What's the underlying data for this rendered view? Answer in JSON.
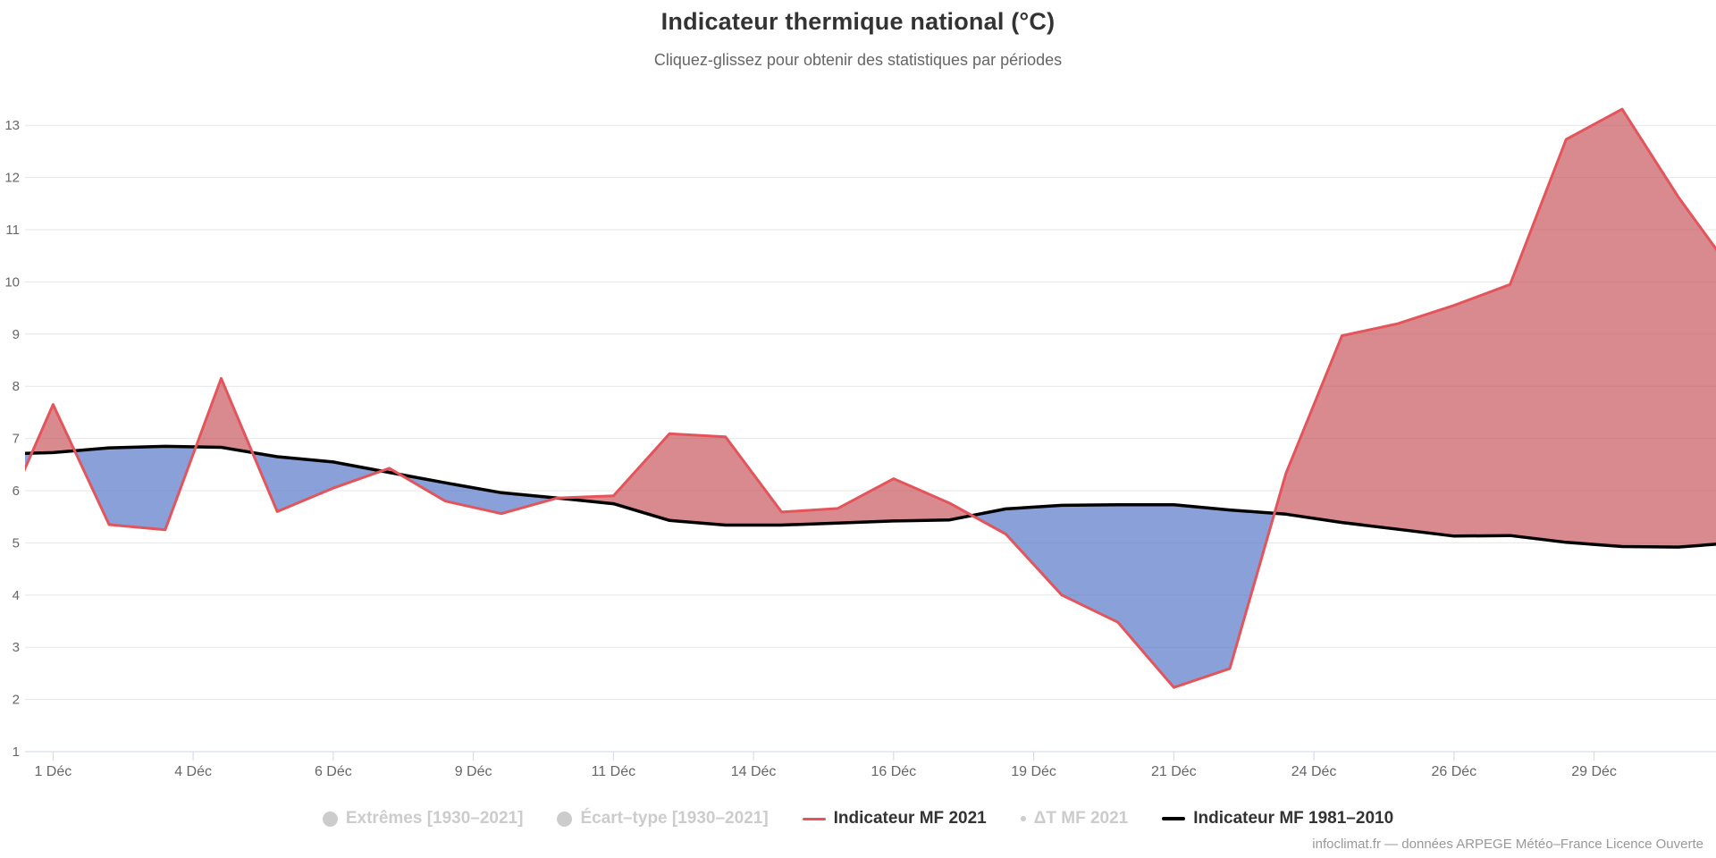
{
  "title": "Indicateur thermique national (°C)",
  "subtitle": "Cliquez-glissez pour obtenir des statistiques par périodes",
  "credit": "infoclimat.fr — données ARPEGE Météo–France Licence Ouverte",
  "colors": {
    "series_2021_line": "#e4545b",
    "series_ref_line": "#000000",
    "fill_above_reference": "rgba(196,77,85,0.66)",
    "fill_below_reference": "rgba(77,111,196,0.66)",
    "grid_line": "#e6e6e6",
    "axis_line": "#ccd6eb",
    "axis_label": "#666666",
    "title_text": "#333333",
    "subtitle_text": "#666666",
    "legend_active_text": "#333333",
    "legend_disabled": "#cccccc",
    "credit_text": "#999999"
  },
  "legend": {
    "items": [
      {
        "label": "Extrêmes [1930–2021]",
        "marker": "circle",
        "enabled": false
      },
      {
        "label": "Écart–type [1930–2021]",
        "marker": "circle",
        "enabled": false
      },
      {
        "label": "Indicateur MF 2021",
        "marker": "line-red",
        "enabled": true
      },
      {
        "label": "ΔT MF 2021",
        "marker": "dot",
        "enabled": false
      },
      {
        "label": "Indicateur MF 1981–2010",
        "marker": "line-black",
        "enabled": true
      }
    ]
  },
  "chart_data": {
    "type": "line",
    "title": "Indicateur thermique national (°C)",
    "xlabel": "",
    "ylabel": "",
    "ylim": [
      1,
      13
    ],
    "y_ticks": [
      1,
      2,
      3,
      4,
      5,
      6,
      7,
      8,
      9,
      10,
      11,
      12,
      13
    ],
    "x_range_days": [
      0,
      30.18
    ],
    "x_ticks": [
      {
        "t": 0.5,
        "label": "1 Déc"
      },
      {
        "t": 3,
        "label": "4 Déc"
      },
      {
        "t": 5.5,
        "label": "6 Déc"
      },
      {
        "t": 8,
        "label": "9 Déc"
      },
      {
        "t": 10.5,
        "label": "11 Déc"
      },
      {
        "t": 13,
        "label": "14 Déc"
      },
      {
        "t": 15.5,
        "label": "16 Déc"
      },
      {
        "t": 18,
        "label": "19 Déc"
      },
      {
        "t": 20.5,
        "label": "21 Déc"
      },
      {
        "t": 23,
        "label": "24 Déc"
      },
      {
        "t": 25.5,
        "label": "26 Déc"
      },
      {
        "t": 28,
        "label": "29 Déc"
      }
    ],
    "days": [
      1,
      2,
      3,
      4,
      5,
      6,
      7,
      8,
      9,
      10,
      11,
      12,
      13,
      14,
      15,
      16,
      17,
      18,
      19,
      20,
      21,
      22,
      23,
      24,
      25,
      26,
      27,
      28,
      29,
      30,
      31
    ],
    "series": [
      {
        "name": "Indicateur MF 2021",
        "color": "#e4545b",
        "lead_in_nov30": 5.2,
        "values": [
          7.65,
          5.35,
          5.25,
          8.15,
          5.6,
          6.05,
          6.43,
          5.8,
          5.56,
          5.86,
          5.9,
          7.09,
          7.03,
          5.59,
          5.66,
          6.23,
          5.76,
          5.17,
          4.0,
          3.48,
          2.23,
          2.59,
          6.33,
          8.97,
          9.2,
          9.55,
          9.95,
          12.73,
          13.31,
          11.63,
          10.15
        ]
      },
      {
        "name": "Indicateur MF 1981–2010",
        "color": "#000000",
        "lead_in_nov30": 6.7,
        "values": [
          6.73,
          6.82,
          6.85,
          6.83,
          6.65,
          6.55,
          6.35,
          6.15,
          5.96,
          5.86,
          5.75,
          5.43,
          5.34,
          5.34,
          5.38,
          5.42,
          5.44,
          5.65,
          5.72,
          5.73,
          5.73,
          5.63,
          5.55,
          5.39,
          5.26,
          5.13,
          5.14,
          5.01,
          4.93,
          4.92,
          5.0
        ]
      }
    ],
    "fills": {
      "above_reference": "rgba(196,77,85,0.66)",
      "below_reference": "rgba(77,111,196,0.66)"
    },
    "grid": true,
    "legend_position": "bottom"
  }
}
